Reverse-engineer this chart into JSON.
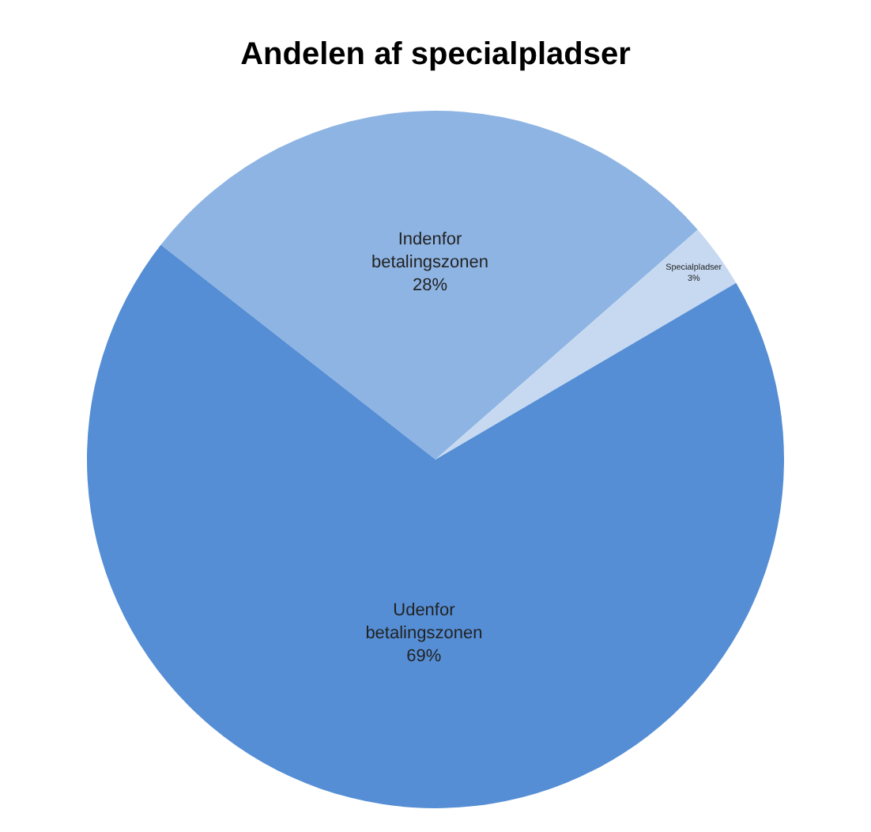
{
  "chart_data": {
    "type": "pie",
    "title": "Andelen af specialpladser",
    "categories": [
      "Indenfor betalingszonen",
      "Specialpladser",
      "Udenfor betalingszonen"
    ],
    "values": [
      28,
      3,
      69
    ],
    "colors": [
      "#8eb4e3",
      "#c6d9f1",
      "#558ed5"
    ],
    "value_labels": [
      "28%",
      "3%",
      "69%"
    ],
    "legend": false
  }
}
